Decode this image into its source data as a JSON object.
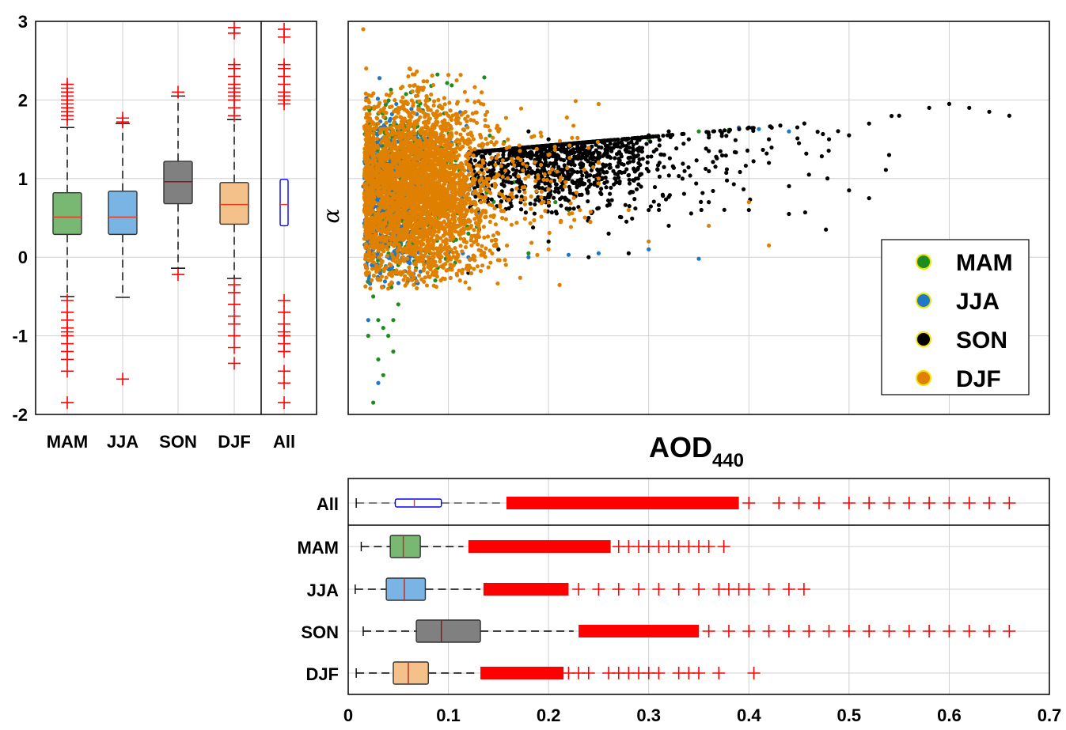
{
  "chart_data": [
    {
      "type": "box",
      "orientation": "vertical",
      "ylabel": "",
      "ylim": [
        -2,
        3
      ],
      "yticks": [
        "-2",
        "-1",
        "0",
        "1",
        "2",
        "3"
      ],
      "categories": [
        "MAM",
        "JJA",
        "SON",
        "DJF",
        "All"
      ],
      "grid": true,
      "boxes": [
        {
          "name": "MAM",
          "color": "#79b872",
          "q1": 0.29,
          "median": 0.51,
          "q3": 0.82,
          "whisker_low": -0.5,
          "whisker_high": 1.65,
          "outliers_high": [
            1.75,
            1.8,
            1.85,
            1.9,
            1.95,
            2.0,
            2.05,
            2.1,
            2.15,
            2.2
          ],
          "outliers_low": [
            -0.55,
            -0.7,
            -0.8,
            -0.9,
            -0.95,
            -1.0,
            -1.1,
            -1.2,
            -1.3,
            -1.45,
            -1.85
          ]
        },
        {
          "name": "JJA",
          "color": "#7ab4e4",
          "q1": 0.29,
          "median": 0.51,
          "q3": 0.84,
          "whisker_low": -0.51,
          "whisker_high": 1.7,
          "outliers_high": [
            1.72,
            1.77
          ],
          "outliers_low": [
            -1.55
          ]
        },
        {
          "name": "SON",
          "color": "#808080",
          "q1": 0.68,
          "median": 0.96,
          "q3": 1.22,
          "whisker_low": -0.14,
          "whisker_high": 2.05,
          "outliers_high": [
            2.1
          ],
          "outliers_low": [
            -0.22
          ]
        },
        {
          "name": "DJF",
          "color": "#f3c189",
          "q1": 0.42,
          "median": 0.67,
          "q3": 0.95,
          "whisker_low": -0.27,
          "whisker_high": 1.75,
          "outliers_high": [
            1.8,
            1.9,
            2.0,
            2.05,
            2.1,
            2.15,
            2.2,
            2.3,
            2.4,
            2.45,
            2.85,
            2.92
          ],
          "outliers_low": [
            -0.35,
            -0.45,
            -0.6,
            -0.75,
            -0.85,
            -1.0,
            -1.15,
            -1.35
          ]
        },
        {
          "name": "All",
          "color": "#ffffff",
          "edge": "#0000ff",
          "q1": 0.4,
          "median": 0.67,
          "q3": 0.99,
          "whisker_low": null,
          "whisker_high": null,
          "outliers_high": [
            1.95,
            2.0,
            2.05,
            2.1,
            2.2,
            2.3,
            2.4,
            2.45,
            2.8,
            2.9
          ],
          "outliers_low": [
            -0.55,
            -0.7,
            -0.85,
            -0.95,
            -1.0,
            -1.1,
            -1.2,
            -1.45,
            -1.6,
            -1.85
          ]
        }
      ]
    },
    {
      "type": "scatter",
      "xlabel": "AOD",
      "xlabel_subscript": "440",
      "ylabel": "α",
      "xlim": [
        0,
        0.7
      ],
      "ylim": [
        -2,
        3
      ],
      "grid": true,
      "legend_position": "bottom-right",
      "series": [
        {
          "name": "MAM",
          "color": "#1f8c1f",
          "points": [
            [
              0.02,
              1.9
            ],
            [
              0.025,
              1.6
            ],
            [
              0.03,
              1.2
            ],
            [
              0.035,
              0.9
            ],
            [
              0.04,
              0.5
            ],
            [
              0.045,
              0.2
            ],
            [
              0.05,
              -0.1
            ],
            [
              0.06,
              0.8
            ],
            [
              0.08,
              1.0
            ],
            [
              0.1,
              0.7
            ],
            [
              0.12,
              0.3
            ],
            [
              0.15,
              0.1
            ],
            [
              0.18,
              0.05
            ],
            [
              0.22,
              0.6
            ],
            [
              0.25,
              1.2
            ],
            [
              0.3,
              1.5
            ],
            [
              0.35,
              1.6
            ],
            [
              0.38,
              1.62
            ],
            [
              0.02,
              -0.2
            ],
            [
              0.025,
              -0.5
            ],
            [
              0.03,
              -0.8
            ],
            [
              0.035,
              -0.9
            ],
            [
              0.04,
              -1.0
            ],
            [
              0.045,
              -0.8
            ],
            [
              0.05,
              -0.6
            ],
            [
              0.03,
              -1.3
            ],
            [
              0.035,
              -1.5
            ],
            [
              0.025,
              -1.85
            ],
            [
              0.02,
              -1.0
            ],
            [
              0.045,
              -1.2
            ]
          ]
        },
        {
          "name": "JJA",
          "color": "#1f77c8",
          "points": [
            [
              0.015,
              0.9
            ],
            [
              0.018,
              0.6
            ],
            [
              0.02,
              0.3
            ],
            [
              0.022,
              1.1
            ],
            [
              0.025,
              0.1
            ],
            [
              0.03,
              -0.1
            ],
            [
              0.04,
              -0.15
            ],
            [
              0.06,
              0.0
            ],
            [
              0.1,
              0.05
            ],
            [
              0.12,
              0.0
            ],
            [
              0.18,
              0.0
            ],
            [
              0.22,
              0.03
            ],
            [
              0.25,
              0.05
            ],
            [
              0.3,
              0.1
            ],
            [
              0.35,
              -0.02
            ],
            [
              0.39,
              1.65
            ],
            [
              0.41,
              1.63
            ],
            [
              0.44,
              1.6
            ],
            [
              0.03,
              -1.6
            ],
            [
              0.02,
              -0.8
            ]
          ]
        },
        {
          "name": "SON",
          "color": "#000000",
          "points": [
            [
              0.18,
              1.6
            ],
            [
              0.2,
              1.5
            ],
            [
              0.22,
              1.4
            ],
            [
              0.25,
              1.3
            ],
            [
              0.28,
              1.45
            ],
            [
              0.3,
              1.55
            ],
            [
              0.32,
              1.6
            ],
            [
              0.34,
              1.5
            ],
            [
              0.36,
              1.35
            ],
            [
              0.38,
              1.6
            ],
            [
              0.4,
              1.65
            ],
            [
              0.42,
              1.5
            ],
            [
              0.45,
              1.45
            ],
            [
              0.48,
              1.5
            ],
            [
              0.5,
              1.55
            ],
            [
              0.52,
              1.7
            ],
            [
              0.55,
              1.8
            ],
            [
              0.58,
              1.9
            ],
            [
              0.6,
              1.95
            ],
            [
              0.62,
              1.9
            ],
            [
              0.64,
              1.85
            ],
            [
              0.66,
              1.8
            ],
            [
              0.2,
              0.8
            ],
            [
              0.24,
              0.5
            ],
            [
              0.26,
              0.3
            ],
            [
              0.3,
              0.6
            ],
            [
              0.32,
              0.4
            ],
            [
              0.36,
              0.7
            ],
            [
              0.4,
              0.6
            ],
            [
              0.44,
              0.55
            ],
            [
              0.5,
              0.85
            ],
            [
              0.52,
              0.75
            ],
            [
              0.42,
              1.2
            ],
            [
              0.46,
              1.05
            ],
            [
              0.54,
              1.3
            ],
            [
              0.15,
              0.1
            ],
            [
              0.2,
              0.2
            ],
            [
              0.24,
              0.0
            ],
            [
              0.28,
              0.05
            ],
            [
              0.12,
              -0.2
            ]
          ]
        },
        {
          "name": "DJF",
          "color": "#e08000",
          "points": [
            [
              0.015,
              2.9
            ],
            [
              0.018,
              2.4
            ],
            [
              0.02,
              2.0
            ],
            [
              0.03,
              1.7
            ],
            [
              0.05,
              1.9
            ],
            [
              0.06,
              2.3
            ],
            [
              0.07,
              2.1
            ],
            [
              0.09,
              2.0
            ],
            [
              0.1,
              1.8
            ],
            [
              0.15,
              1.6
            ],
            [
              0.2,
              1.3
            ],
            [
              0.25,
              1.0
            ],
            [
              0.28,
              0.6
            ],
            [
              0.3,
              0.2
            ],
            [
              0.36,
              0.4
            ],
            [
              0.4,
              0.7
            ],
            [
              0.42,
              0.15
            ],
            [
              0.06,
              -0.2
            ],
            [
              0.04,
              -0.4
            ],
            [
              0.08,
              0.0
            ],
            [
              0.15,
              0.3
            ],
            [
              0.2,
              0.1
            ]
          ]
        }
      ],
      "legend": [
        "MAM",
        "JJA",
        "SON",
        "DJF"
      ]
    },
    {
      "type": "box",
      "orientation": "horizontal",
      "xlabel": "",
      "xlim": [
        0,
        0.7
      ],
      "xticks": [
        "0",
        "0.1",
        "0.2",
        "0.3",
        "0.4",
        "0.5",
        "0.6",
        "0.7"
      ],
      "categories": [
        "All",
        "MAM",
        "JJA",
        "SON",
        "DJF"
      ],
      "grid": true,
      "boxes": [
        {
          "name": "All",
          "color": "#ffffff",
          "edge": "#0000ff",
          "q1": 0.047,
          "median": 0.066,
          "q3": 0.093,
          "whisker_low": 0.008,
          "whisker_high": 0.155,
          "outlier_band": [
            0.158,
            0.39
          ],
          "outliers_sparse": [
            0.4,
            0.43,
            0.45,
            0.47,
            0.5,
            0.52,
            0.54,
            0.56,
            0.58,
            0.6,
            0.62,
            0.64,
            0.66
          ]
        },
        {
          "name": "MAM",
          "color": "#79b872",
          "q1": 0.042,
          "median": 0.055,
          "q3": 0.072,
          "whisker_low": 0.013,
          "whisker_high": 0.115,
          "outlier_band": [
            0.12,
            0.262
          ],
          "outliers_sparse": [
            0.27,
            0.28,
            0.29,
            0.3,
            0.31,
            0.32,
            0.33,
            0.34,
            0.35,
            0.36,
            0.375
          ]
        },
        {
          "name": "JJA",
          "color": "#7ab4e4",
          "q1": 0.038,
          "median": 0.056,
          "q3": 0.077,
          "whisker_low": 0.007,
          "whisker_high": 0.132,
          "outlier_band": [
            0.135,
            0.22
          ],
          "outliers_sparse": [
            0.23,
            0.25,
            0.27,
            0.29,
            0.31,
            0.33,
            0.35,
            0.37,
            0.38,
            0.39,
            0.4,
            0.42,
            0.44,
            0.455
          ]
        },
        {
          "name": "SON",
          "color": "#808080",
          "q1": 0.068,
          "median": 0.093,
          "q3": 0.132,
          "whisker_low": 0.015,
          "whisker_high": 0.225,
          "outlier_band": [
            0.23,
            0.35
          ],
          "outliers_sparse": [
            0.36,
            0.38,
            0.4,
            0.42,
            0.44,
            0.46,
            0.48,
            0.5,
            0.52,
            0.54,
            0.56,
            0.58,
            0.6,
            0.62,
            0.64,
            0.66
          ]
        },
        {
          "name": "DJF",
          "color": "#f3c189",
          "q1": 0.045,
          "median": 0.06,
          "q3": 0.08,
          "whisker_low": 0.008,
          "whisker_high": 0.128,
          "outlier_band": [
            0.132,
            0.215
          ],
          "outliers_sparse": [
            0.22,
            0.23,
            0.24,
            0.26,
            0.27,
            0.28,
            0.29,
            0.3,
            0.31,
            0.33,
            0.34,
            0.35,
            0.37,
            0.405
          ]
        }
      ]
    }
  ]
}
